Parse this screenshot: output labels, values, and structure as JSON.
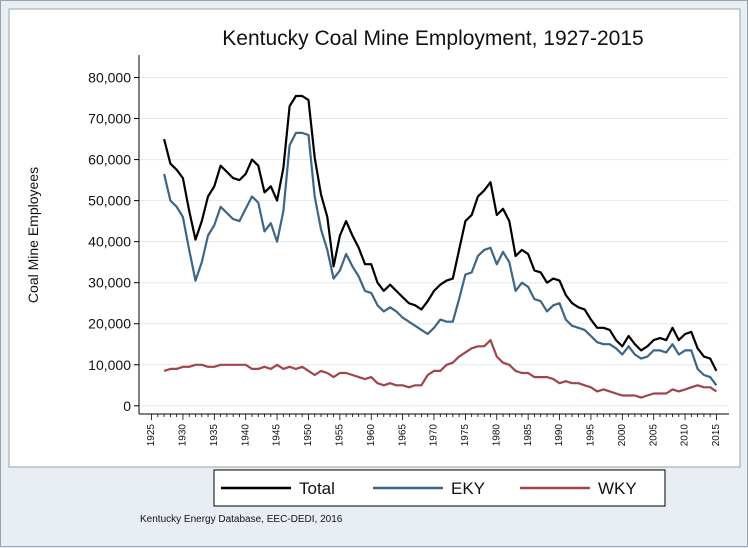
{
  "chart_data": {
    "type": "line",
    "title": "Kentucky Coal Mine Employment, 1927-2015",
    "xlabel": "",
    "ylabel": "Coal Mine Employees",
    "xlim": [
      1923,
      2017
    ],
    "ylim": [
      -2000,
      85000
    ],
    "yticks": [
      0,
      10000,
      20000,
      30000,
      40000,
      50000,
      60000,
      70000,
      80000
    ],
    "ytick_labels": [
      "0",
      "10,000",
      "20,000",
      "30,000",
      "40,000",
      "50,000",
      "60,000",
      "70,000",
      "80,000"
    ],
    "xticks": [
      1925,
      1930,
      1935,
      1940,
      1945,
      1950,
      1955,
      1960,
      1965,
      1970,
      1975,
      1980,
      1985,
      1990,
      1995,
      2000,
      2005,
      2010,
      2015
    ],
    "grid": true,
    "legend_position": "bottom",
    "note": "Kentucky Energy Database, EEC-DEDI, 2016",
    "x": [
      1927,
      1928,
      1929,
      1930,
      1931,
      1932,
      1933,
      1934,
      1935,
      1936,
      1937,
      1938,
      1939,
      1940,
      1941,
      1942,
      1943,
      1944,
      1945,
      1946,
      1947,
      1948,
      1949,
      1950,
      1951,
      1952,
      1953,
      1954,
      1955,
      1956,
      1957,
      1958,
      1959,
      1960,
      1961,
      1962,
      1963,
      1964,
      1965,
      1966,
      1967,
      1968,
      1969,
      1970,
      1971,
      1972,
      1973,
      1974,
      1975,
      1976,
      1977,
      1978,
      1979,
      1980,
      1981,
      1982,
      1983,
      1984,
      1985,
      1986,
      1987,
      1988,
      1989,
      1990,
      1991,
      1992,
      1993,
      1994,
      1995,
      1996,
      1997,
      1998,
      1999,
      2000,
      2001,
      2002,
      2003,
      2004,
      2005,
      2006,
      2007,
      2008,
      2009,
      2010,
      2011,
      2012,
      2013,
      2014,
      2015
    ],
    "series": [
      {
        "name": "Total",
        "color": "#000000",
        "values": [
          65000,
          59000,
          57500,
          55500,
          47500,
          40500,
          45000,
          51000,
          53500,
          58500,
          57000,
          55500,
          55000,
          56500,
          60000,
          58500,
          52000,
          53500,
          50000,
          58000,
          73000,
          75500,
          75500,
          74500,
          60500,
          51500,
          46000,
          34000,
          41500,
          45000,
          41500,
          38500,
          34500,
          34500,
          30000,
          28000,
          29500,
          28000,
          26500,
          25000,
          24500,
          23500,
          25500,
          28000,
          29500,
          30500,
          31000,
          38000,
          45000,
          46500,
          51000,
          52500,
          54500,
          46500,
          48000,
          45000,
          36500,
          38000,
          37000,
          33000,
          32500,
          30000,
          31000,
          30500,
          27000,
          25000,
          24000,
          23500,
          21000,
          19000,
          19000,
          18500,
          16000,
          14500,
          17000,
          15000,
          13500,
          14500,
          16000,
          16500,
          16000,
          19000,
          16000,
          17500,
          18000,
          14000,
          12000,
          11500,
          8500
        ]
      },
      {
        "name": "EKY",
        "color": "#3d6585",
        "values": [
          56500,
          50000,
          48500,
          46000,
          38000,
          30500,
          35000,
          41500,
          44000,
          48500,
          47000,
          45500,
          45000,
          48000,
          51000,
          49500,
          42500,
          44500,
          40000,
          47500,
          63500,
          66500,
          66500,
          66000,
          51000,
          43000,
          38000,
          31000,
          33000,
          37000,
          34000,
          31500,
          28000,
          27500,
          24500,
          23000,
          24000,
          23000,
          21500,
          20500,
          19500,
          18500,
          17500,
          19000,
          21000,
          20500,
          20500,
          26000,
          32000,
          32500,
          36500,
          38000,
          38500,
          34500,
          37500,
          35000,
          28000,
          30000,
          29000,
          26000,
          25500,
          23000,
          24500,
          25000,
          21000,
          19500,
          19000,
          18500,
          17000,
          15500,
          15000,
          15000,
          14000,
          12500,
          14500,
          12500,
          11500,
          12000,
          13500,
          13500,
          13000,
          15000,
          12500,
          13500,
          13500,
          9000,
          7500,
          7000,
          5000
        ]
      },
      {
        "name": "WKY",
        "color": "#a0454a",
        "values": [
          8500,
          9000,
          9000,
          9500,
          9500,
          10000,
          10000,
          9500,
          9500,
          10000,
          10000,
          10000,
          10000,
          10000,
          9000,
          9000,
          9500,
          9000,
          10000,
          9000,
          9500,
          9000,
          9500,
          8500,
          7500,
          8500,
          8000,
          7000,
          8000,
          8000,
          7500,
          7000,
          6500,
          7000,
          5500,
          5000,
          5500,
          5000,
          5000,
          4500,
          5000,
          5000,
          7500,
          8500,
          8500,
          10000,
          10500,
          12000,
          13000,
          14000,
          14500,
          14500,
          16000,
          12000,
          10500,
          10000,
          8500,
          8000,
          8000,
          7000,
          7000,
          7000,
          6500,
          5500,
          6000,
          5500,
          5500,
          5000,
          4500,
          3500,
          4000,
          3500,
          3000,
          2500,
          2500,
          2500,
          2000,
          2500,
          3000,
          3000,
          3000,
          4000,
          3500,
          4000,
          4500,
          5000,
          4500,
          4500,
          3500
        ]
      }
    ]
  }
}
